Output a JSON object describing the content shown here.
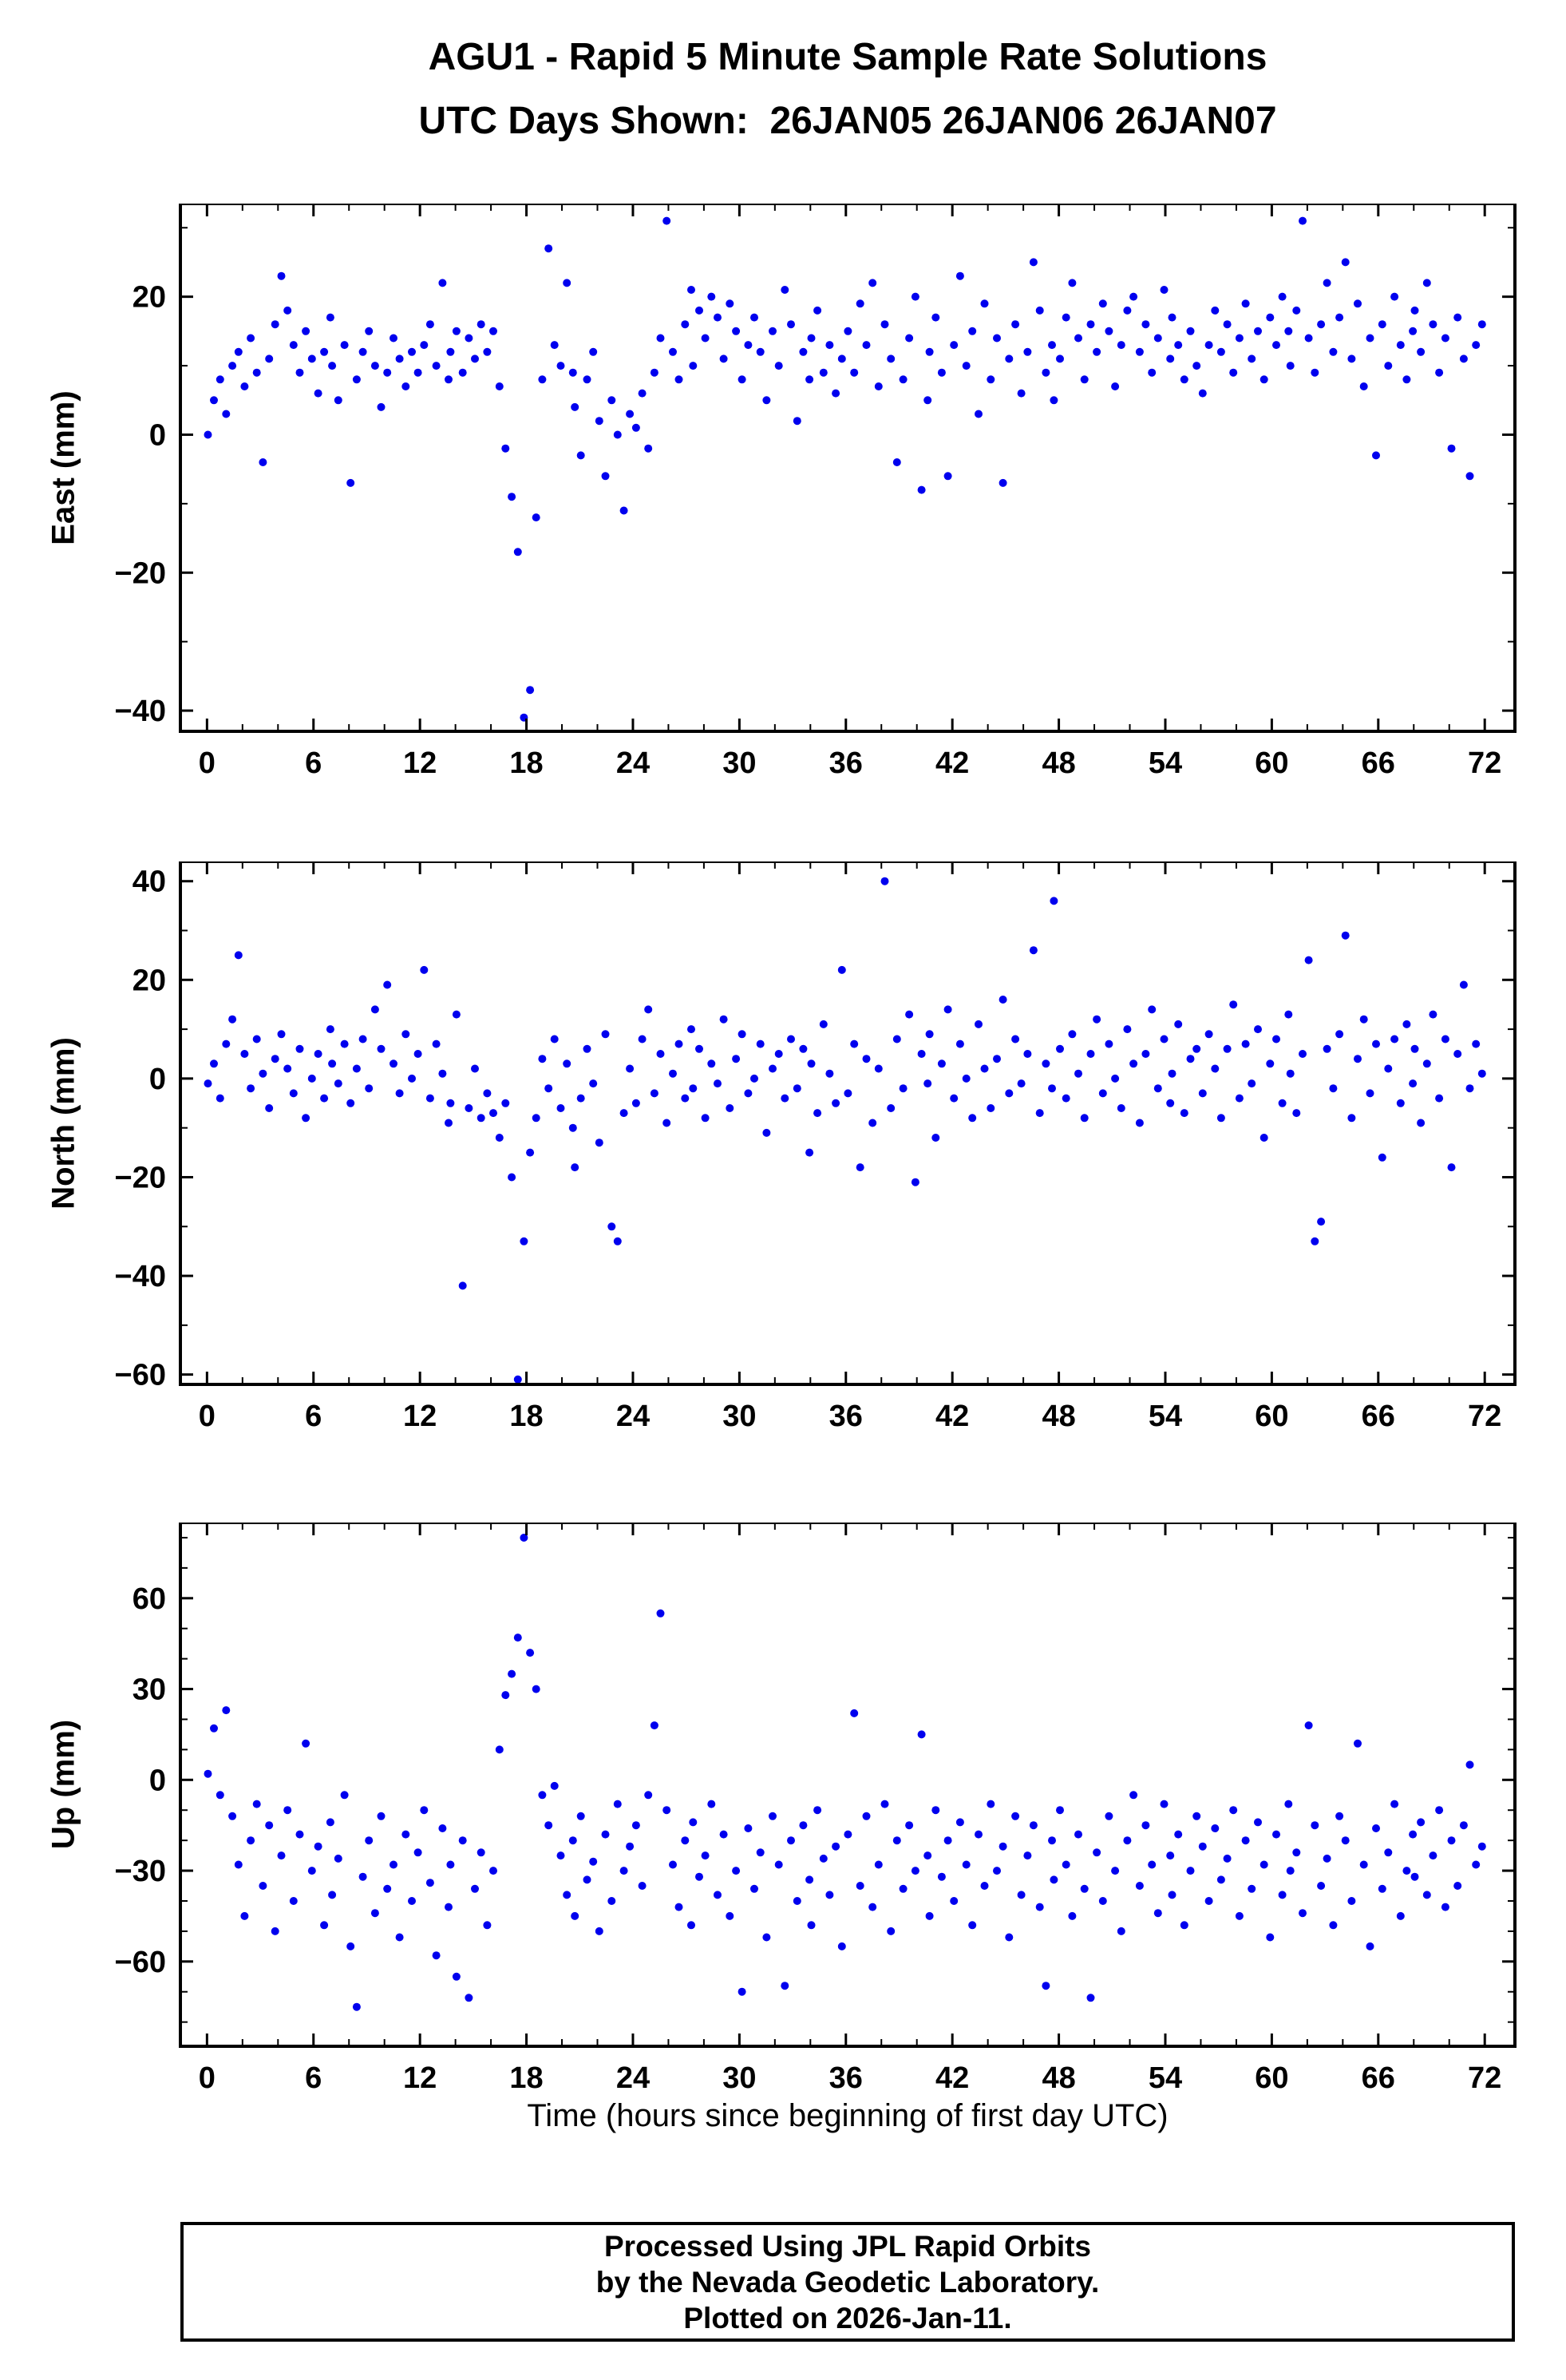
{
  "title": {
    "line1": "AGU1 - Rapid 5 Minute Sample Rate Solutions",
    "line2": "UTC Days Shown:  26JAN05 26JAN06 26JAN07"
  },
  "xaxis_label": "Time (hours since beginning of first day UTC)",
  "footer": {
    "line1": "Processed Using JPL Rapid Orbits",
    "line2": "by the Nevada Geodetic Laboratory.",
    "line3": "Plotted on 2026-Jan-11."
  },
  "point_color": "#0000ee",
  "axis_color": "#000000",
  "chart_data": [
    {
      "type": "scatter",
      "series_name": "East",
      "ylabel": "East (mm)",
      "xlim": [
        -1.5,
        73.7
      ],
      "ylim": [
        -43,
        33.5
      ],
      "xticks": [
        0,
        6,
        12,
        18,
        24,
        30,
        36,
        42,
        48,
        54,
        60,
        66,
        72
      ],
      "yticks": [
        -40,
        -20,
        0,
        20
      ],
      "x_minor_step": 2,
      "y_minor_step": 10,
      "x_start": 0.17,
      "x_step": 0.3333,
      "y": [
        0,
        5,
        8,
        3,
        10,
        12,
        7,
        14,
        9,
        -4,
        11,
        16,
        23,
        18,
        13,
        9,
        15,
        11,
        6,
        12,
        17,
        10,
        5,
        13,
        -7,
        8,
        12,
        15,
        10,
        4,
        9,
        14,
        11,
        7,
        12,
        9,
        13,
        16,
        10,
        22,
        8,
        12,
        15,
        9,
        14,
        11,
        16,
        12,
        15,
        7,
        -2,
        -9,
        -17,
        -41,
        -37,
        -12,
        8,
        27,
        13,
        10,
        22,
        9,
        4,
        -3,
        8,
        12,
        2,
        -6,
        5,
        0,
        -11,
        3,
        1,
        6,
        -2,
        9,
        14,
        31,
        12,
        8,
        16,
        21,
        10,
        18,
        14,
        20,
        17,
        11,
        19,
        15,
        8,
        13,
        17,
        12,
        5,
        15,
        10,
        21,
        16,
        2,
        12,
        8,
        14,
        18,
        9,
        13,
        6,
        11,
        15,
        9,
        19,
        13,
        22,
        7,
        16,
        11,
        -4,
        8,
        14,
        20,
        -8,
        5,
        12,
        17,
        9,
        -6,
        13,
        23,
        10,
        15,
        3,
        19,
        8,
        14,
        -7,
        11,
        16,
        6,
        12,
        25,
        18,
        9,
        13,
        5,
        11,
        17,
        22,
        14,
        8,
        16,
        12,
        19,
        15,
        7,
        13,
        18,
        20,
        12,
        16,
        9,
        14,
        21,
        11,
        17,
        13,
        8,
        15,
        10,
        6,
        13,
        18,
        12,
        16,
        9,
        14,
        19,
        11,
        15,
        8,
        17,
        13,
        20,
        15,
        10,
        18,
        31,
        14,
        9,
        16,
        22,
        12,
        17,
        25,
        11,
        19,
        7,
        14,
        -3,
        16,
        10,
        20,
        13,
        8,
        15,
        18,
        12,
        22,
        16,
        9,
        14,
        -2,
        17,
        11,
        -6,
        13,
        16
      ]
    },
    {
      "type": "scatter",
      "series_name": "North",
      "ylabel": "North (mm)",
      "xlim": [
        -1.5,
        73.7
      ],
      "ylim": [
        -62,
        44
      ],
      "xticks": [
        0,
        6,
        12,
        18,
        24,
        30,
        36,
        42,
        48,
        54,
        60,
        66,
        72
      ],
      "yticks": [
        -60,
        -40,
        -20,
        0,
        20,
        40
      ],
      "x_minor_step": 2,
      "y_minor_step": 10,
      "x_start": 0.17,
      "x_step": 0.3333,
      "y": [
        -1,
        3,
        -4,
        7,
        12,
        25,
        5,
        -2,
        8,
        1,
        -6,
        4,
        9,
        2,
        -3,
        6,
        -8,
        0,
        5,
        -4,
        10,
        3,
        -1,
        7,
        -5,
        2,
        8,
        -2,
        14,
        6,
        19,
        3,
        -3,
        9,
        0,
        5,
        22,
        -4,
        7,
        1,
        -9,
        -5,
        13,
        -42,
        -6,
        2,
        -8,
        -3,
        -7,
        -12,
        -5,
        -20,
        -61,
        -33,
        -15,
        -8,
        4,
        -2,
        8,
        -6,
        3,
        -10,
        -18,
        -4,
        6,
        -1,
        -13,
        9,
        -30,
        -33,
        -7,
        2,
        -5,
        8,
        14,
        -3,
        5,
        -9,
        1,
        7,
        -4,
        10,
        -2,
        6,
        -8,
        3,
        -1,
        12,
        -6,
        4,
        9,
        -3,
        0,
        7,
        -11,
        2,
        5,
        -4,
        8,
        -2,
        6,
        -15,
        3,
        -7,
        11,
        1,
        -5,
        22,
        -3,
        7,
        -18,
        4,
        -9,
        2,
        40,
        -6,
        8,
        -2,
        13,
        -21,
        5,
        -1,
        9,
        -12,
        3,
        14,
        -4,
        7,
        0,
        -8,
        11,
        2,
        -6,
        4,
        16,
        -3,
        8,
        -1,
        5,
        26,
        -7,
        3,
        -2,
        36,
        6,
        -4,
        9,
        1,
        -8,
        5,
        12,
        -3,
        7,
        0,
        -6,
        10,
        3,
        -9,
        5,
        14,
        -2,
        8,
        -5,
        1,
        11,
        -7,
        4,
        6,
        -3,
        9,
        2,
        -8,
        6,
        15,
        -4,
        7,
        -1,
        10,
        -12,
        3,
        8,
        -5,
        13,
        1,
        -7,
        5,
        24,
        -33,
        -29,
        6,
        -2,
        9,
        29,
        -8,
        4,
        12,
        -3,
        7,
        -16,
        2,
        8,
        -5,
        11,
        -1,
        6,
        -9,
        3,
        13,
        -4,
        8,
        -18,
        5,
        19,
        -2,
        7,
        1
      ]
    },
    {
      "type": "scatter",
      "series_name": "Up",
      "ylabel": "Up (mm)",
      "xlim": [
        -1.5,
        73.7
      ],
      "ylim": [
        -88,
        85
      ],
      "xticks": [
        0,
        6,
        12,
        18,
        24,
        30,
        36,
        42,
        48,
        54,
        60,
        66,
        72
      ],
      "yticks": [
        -60,
        -30,
        0,
        30,
        60
      ],
      "x_minor_step": 2,
      "y_minor_step": 10,
      "x_start": 0.17,
      "x_step": 0.3333,
      "y": [
        2,
        17,
        -5,
        23,
        -12,
        -28,
        -45,
        -20,
        -8,
        -35,
        -15,
        -50,
        -25,
        -10,
        -40,
        -18,
        12,
        -30,
        -22,
        -48,
        -14,
        -38,
        -26,
        -5,
        -55,
        -75,
        -32,
        -20,
        -44,
        -12,
        -36,
        -28,
        -52,
        -18,
        -40,
        -24,
        -10,
        -34,
        -58,
        -16,
        -42,
        -28,
        -65,
        -20,
        -72,
        -36,
        -24,
        -48,
        -30,
        10,
        28,
        35,
        47,
        80,
        42,
        30,
        -5,
        -15,
        -2,
        -25,
        -38,
        -20,
        -45,
        -12,
        -33,
        -27,
        -50,
        -18,
        -40,
        -8,
        -30,
        -22,
        -15,
        -35,
        -5,
        18,
        55,
        -10,
        -28,
        -42,
        -20,
        -48,
        -14,
        -32,
        -25,
        -8,
        -38,
        -18,
        -45,
        -30,
        -70,
        -16,
        -36,
        -24,
        -52,
        -12,
        -28,
        -68,
        -20,
        -40,
        -15,
        -33,
        -48,
        -10,
        -26,
        -38,
        -22,
        -55,
        -18,
        22,
        -35,
        -12,
        -42,
        -28,
        -8,
        -50,
        -20,
        -36,
        -15,
        -30,
        15,
        -25,
        -45,
        -10,
        -32,
        -20,
        -40,
        -14,
        -28,
        -48,
        -18,
        -35,
        -8,
        -30,
        -22,
        -52,
        -12,
        -38,
        -25,
        -15,
        -42,
        -68,
        -20,
        -33,
        -10,
        -28,
        -45,
        -18,
        -36,
        -72,
        -24,
        -40,
        -12,
        -30,
        -50,
        -20,
        -5,
        -35,
        -15,
        -28,
        -44,
        -8,
        -25,
        -38,
        -18,
        -48,
        -30,
        -12,
        -22,
        -40,
        -16,
        -33,
        -26,
        -10,
        -45,
        -20,
        -36,
        -14,
        -28,
        -52,
        -18,
        -38,
        -8,
        -30,
        -24,
        -44,
        18,
        -15,
        -35,
        -26,
        -48,
        -12,
        -20,
        -40,
        12,
        -28,
        -55,
        -16,
        -36,
        -24,
        -8,
        -45,
        -30,
        -18,
        -32,
        -14,
        -38,
        -25,
        -10,
        -42,
        -20,
        -35,
        -15,
        5,
        -28,
        -22
      ]
    }
  ]
}
